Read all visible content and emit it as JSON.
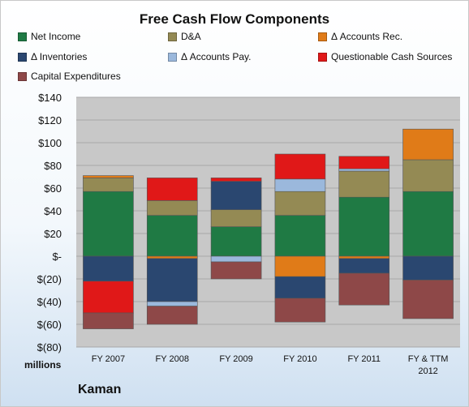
{
  "chart_data": {
    "type": "bar",
    "stacked": true,
    "title": "Free Cash Flow Components",
    "categories": [
      "FY 2007",
      "FY 2008",
      "FY 2009",
      "FY 2010",
      "FY 2011",
      "FY & TTM 2012"
    ],
    "units_label": "millions",
    "company": "Kaman",
    "ylim": [
      -80,
      140
    ],
    "yticks": [
      -80,
      -60,
      -40,
      -20,
      0,
      20,
      40,
      60,
      80,
      100,
      120,
      140
    ],
    "ytick_labels": [
      "$(80)",
      "$(60)",
      "$(40)",
      "$(20)",
      "$-",
      "$20",
      "$40",
      "$60",
      "$80",
      "$100",
      "$120",
      "$140"
    ],
    "plot_background": "#c8c8c8",
    "legend_position": "top",
    "series": [
      {
        "name": "Net Income",
        "color": "#1f7a44",
        "values": [
          57,
          36,
          26,
          36,
          52,
          57
        ]
      },
      {
        "name": "D&A",
        "color": "#948a54",
        "values": [
          12,
          13,
          15,
          21,
          23,
          28
        ]
      },
      {
        "name": "Δ Accounts Rec.",
        "color": "#e07b18",
        "values": [
          2,
          -2,
          0,
          -18,
          -2,
          27
        ]
      },
      {
        "name": "Δ Inventories",
        "color": "#2a4770",
        "values": [
          -22,
          -38,
          25,
          -19,
          -13,
          -21
        ]
      },
      {
        "name": "Δ Accounts Pay.",
        "color": "#9bb8dc",
        "values": [
          0,
          -4,
          -5,
          11,
          2,
          0
        ]
      },
      {
        "name": "Questionable Cash Sources",
        "color": "#e01818",
        "values": [
          -28,
          20,
          3,
          22,
          11,
          0
        ]
      },
      {
        "name": "Capital Expenditures",
        "color": "#8e4848",
        "values": [
          -14,
          -16,
          -15,
          -21,
          -28,
          -34
        ]
      }
    ]
  }
}
